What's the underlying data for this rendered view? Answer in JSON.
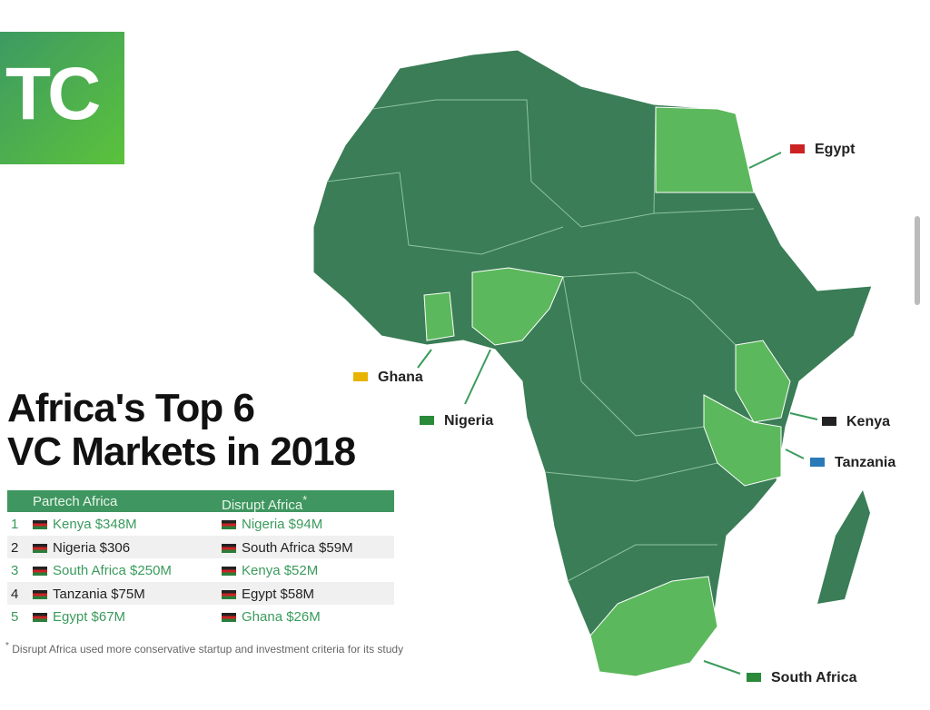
{
  "logo": "TC",
  "title": [
    "Africa's Top 6",
    "VC Markets in 2018"
  ],
  "map_labels": [
    "Egypt",
    "Ghana",
    "Nigeria",
    "Kenya",
    "Tanzania",
    "South Africa"
  ],
  "table": {
    "headers": [
      "Partech Africa",
      "Disrupt Africa"
    ],
    "header_note": "*",
    "rows": [
      [
        "1",
        "Kenya $348M",
        "Nigeria $94M"
      ],
      [
        "2",
        "Nigeria $306",
        "South Africa $59M"
      ],
      [
        "3",
        "South Africa $250M",
        "Kenya $52M"
      ],
      [
        "4",
        "Tanzania $75M",
        "Egypt $58M"
      ],
      [
        "5",
        "Egypt $67M",
        "Ghana $26M"
      ]
    ]
  },
  "footnote": {
    "mark": "*",
    "text": "Disrupt Africa used more conservative startup and investment criteria for its study"
  }
}
